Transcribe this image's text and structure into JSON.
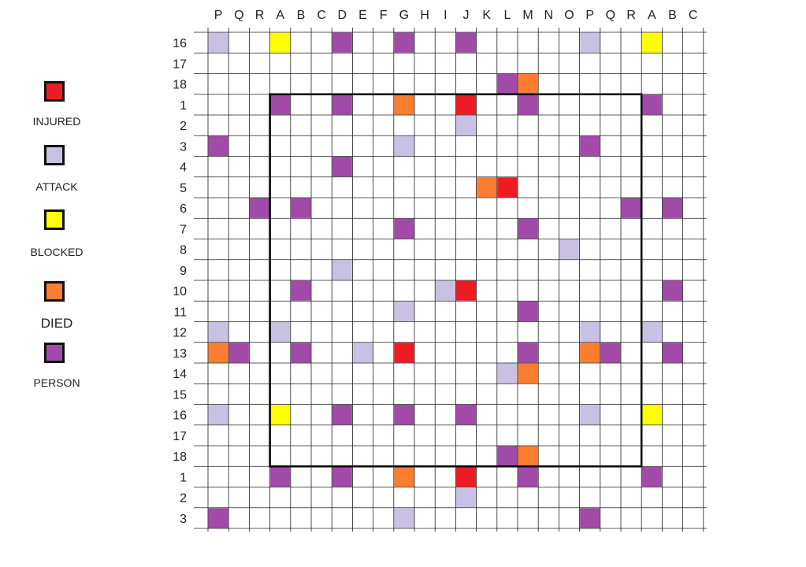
{
  "colors": {
    "injured": "#ed1c24",
    "attack": "#c8c1e4",
    "blocked": "#ffff00",
    "died": "#fb7d2f",
    "person": "#a14aa7",
    "grid": "#222222",
    "frame": "#000000"
  },
  "legend": [
    {
      "key": "injured",
      "label": "INJURED"
    },
    {
      "key": "attack",
      "label": "ATTACK"
    },
    {
      "key": "blocked",
      "label": "BLOCKED"
    },
    {
      "key": "died",
      "label": "DIED"
    },
    {
      "key": "person",
      "label": "PERSON"
    }
  ],
  "columns": [
    "P",
    "Q",
    "R",
    "A",
    "B",
    "C",
    "D",
    "E",
    "F",
    "G",
    "H",
    "I",
    "J",
    "K",
    "L",
    "M",
    "N",
    "O",
    "P",
    "Q",
    "R",
    "A",
    "B",
    "C"
  ],
  "rows": [
    "16",
    "17",
    "18",
    "1",
    "2",
    "3",
    "4",
    "5",
    "6",
    "7",
    "8",
    "9",
    "10",
    "11",
    "12",
    "13",
    "14",
    "15",
    "16",
    "17",
    "18",
    "1",
    "2",
    "3"
  ],
  "inner_square": {
    "from_col": "A",
    "from_row": "1",
    "to_col": "A",
    "to_row": "18"
  },
  "cells": [
    {
      "col": 0,
      "row": 0,
      "key": "attack"
    },
    {
      "col": 3,
      "row": 0,
      "key": "blocked"
    },
    {
      "col": 6,
      "row": 0,
      "key": "person"
    },
    {
      "col": 9,
      "row": 0,
      "key": "person"
    },
    {
      "col": 12,
      "row": 0,
      "key": "person"
    },
    {
      "col": 18,
      "row": 0,
      "key": "attack"
    },
    {
      "col": 21,
      "row": 0,
      "key": "blocked"
    },
    {
      "col": 14,
      "row": 2,
      "key": "person"
    },
    {
      "col": 15,
      "row": 2,
      "key": "died"
    },
    {
      "col": 3,
      "row": 3,
      "key": "person"
    },
    {
      "col": 6,
      "row": 3,
      "key": "person"
    },
    {
      "col": 9,
      "row": 3,
      "key": "died"
    },
    {
      "col": 12,
      "row": 3,
      "key": "injured"
    },
    {
      "col": 15,
      "row": 3,
      "key": "person"
    },
    {
      "col": 21,
      "row": 3,
      "key": "person"
    },
    {
      "col": 12,
      "row": 4,
      "key": "attack"
    },
    {
      "col": 0,
      "row": 5,
      "key": "person"
    },
    {
      "col": 9,
      "row": 5,
      "key": "attack"
    },
    {
      "col": 18,
      "row": 5,
      "key": "person"
    },
    {
      "col": 6,
      "row": 6,
      "key": "person"
    },
    {
      "col": 13,
      "row": 7,
      "key": "died"
    },
    {
      "col": 14,
      "row": 7,
      "key": "injured"
    },
    {
      "col": 2,
      "row": 8,
      "key": "person"
    },
    {
      "col": 4,
      "row": 8,
      "key": "person"
    },
    {
      "col": 20,
      "row": 8,
      "key": "person"
    },
    {
      "col": 22,
      "row": 8,
      "key": "person"
    },
    {
      "col": 9,
      "row": 9,
      "key": "person"
    },
    {
      "col": 15,
      "row": 9,
      "key": "person"
    },
    {
      "col": 17,
      "row": 10,
      "key": "attack"
    },
    {
      "col": 6,
      "row": 11,
      "key": "attack"
    },
    {
      "col": 4,
      "row": 12,
      "key": "person"
    },
    {
      "col": 11,
      "row": 12,
      "key": "attack"
    },
    {
      "col": 12,
      "row": 12,
      "key": "injured"
    },
    {
      "col": 22,
      "row": 12,
      "key": "person"
    },
    {
      "col": 9,
      "row": 13,
      "key": "attack"
    },
    {
      "col": 15,
      "row": 13,
      "key": "person"
    },
    {
      "col": 0,
      "row": 14,
      "key": "attack"
    },
    {
      "col": 3,
      "row": 14,
      "key": "attack"
    },
    {
      "col": 18,
      "row": 14,
      "key": "attack"
    },
    {
      "col": 21,
      "row": 14,
      "key": "attack"
    },
    {
      "col": 0,
      "row": 15,
      "key": "died"
    },
    {
      "col": 1,
      "row": 15,
      "key": "person"
    },
    {
      "col": 4,
      "row": 15,
      "key": "person"
    },
    {
      "col": 7,
      "row": 15,
      "key": "attack"
    },
    {
      "col": 9,
      "row": 15,
      "key": "injured"
    },
    {
      "col": 15,
      "row": 15,
      "key": "person"
    },
    {
      "col": 18,
      "row": 15,
      "key": "died"
    },
    {
      "col": 19,
      "row": 15,
      "key": "person"
    },
    {
      "col": 22,
      "row": 15,
      "key": "person"
    },
    {
      "col": 14,
      "row": 16,
      "key": "attack"
    },
    {
      "col": 15,
      "row": 16,
      "key": "died"
    },
    {
      "col": 0,
      "row": 18,
      "key": "attack"
    },
    {
      "col": 3,
      "row": 18,
      "key": "blocked"
    },
    {
      "col": 6,
      "row": 18,
      "key": "person"
    },
    {
      "col": 9,
      "row": 18,
      "key": "person"
    },
    {
      "col": 12,
      "row": 18,
      "key": "person"
    },
    {
      "col": 18,
      "row": 18,
      "key": "attack"
    },
    {
      "col": 21,
      "row": 18,
      "key": "blocked"
    },
    {
      "col": 14,
      "row": 20,
      "key": "person"
    },
    {
      "col": 15,
      "row": 20,
      "key": "died"
    },
    {
      "col": 3,
      "row": 21,
      "key": "person"
    },
    {
      "col": 6,
      "row": 21,
      "key": "person"
    },
    {
      "col": 9,
      "row": 21,
      "key": "died"
    },
    {
      "col": 12,
      "row": 21,
      "key": "injured"
    },
    {
      "col": 15,
      "row": 21,
      "key": "person"
    },
    {
      "col": 21,
      "row": 21,
      "key": "person"
    },
    {
      "col": 12,
      "row": 22,
      "key": "attack"
    },
    {
      "col": 0,
      "row": 23,
      "key": "person"
    },
    {
      "col": 9,
      "row": 23,
      "key": "attack"
    },
    {
      "col": 18,
      "row": 23,
      "key": "person"
    }
  ]
}
